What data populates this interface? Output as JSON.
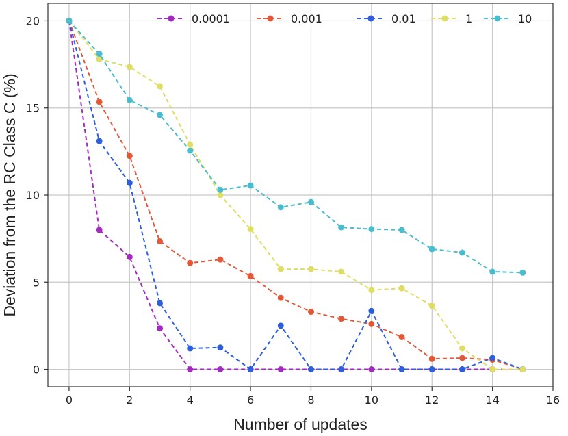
{
  "chart_data": {
    "type": "line",
    "title": "",
    "xlabel": "Number of updates",
    "ylabel": "Deviation from the RC Class C (%)",
    "xlim": [
      -0.7,
      16
    ],
    "ylim": [
      -1,
      21
    ],
    "xticks": [
      0,
      2,
      4,
      6,
      8,
      10,
      12,
      14,
      16
    ],
    "yticks": [
      0,
      5,
      10,
      15,
      20
    ],
    "grid": true,
    "legend_position": "top",
    "x": [
      0,
      1,
      2,
      3,
      4,
      5,
      6,
      7,
      8,
      9,
      10,
      11,
      12,
      13,
      14,
      15
    ],
    "series": [
      {
        "name": "0.0001",
        "color": "#a22bbf",
        "values": [
          20,
          8.0,
          6.45,
          2.35,
          0.0,
          0.0,
          0.0,
          0.0,
          0.0,
          0.0,
          0.0,
          0.0,
          0.0,
          0.0,
          0.0,
          0.0
        ]
      },
      {
        "name": "0.001",
        "color": "#e05a3a",
        "values": [
          20,
          15.35,
          12.25,
          7.35,
          6.1,
          6.3,
          5.35,
          4.1,
          3.3,
          2.9,
          2.6,
          1.85,
          0.6,
          0.65,
          0.55,
          0.0
        ]
      },
      {
        "name": "0.01",
        "color": "#2f5fd8",
        "values": [
          20,
          13.1,
          10.7,
          3.8,
          1.2,
          1.25,
          0.0,
          2.5,
          0.0,
          0.0,
          3.35,
          0.0,
          0.0,
          0.0,
          0.65,
          0.0
        ]
      },
      {
        "name": "1",
        "color": "#dede66",
        "values": [
          20,
          17.8,
          17.35,
          16.25,
          12.9,
          10.0,
          8.05,
          5.75,
          5.75,
          5.6,
          4.55,
          4.65,
          3.65,
          1.2,
          0.0,
          0.0
        ]
      },
      {
        "name": "10",
        "color": "#4bbcce",
        "values": [
          20,
          18.1,
          15.45,
          14.6,
          12.55,
          10.3,
          10.55,
          9.3,
          9.6,
          8.15,
          8.05,
          8.0,
          6.9,
          6.7,
          5.6,
          5.55
        ]
      }
    ]
  }
}
